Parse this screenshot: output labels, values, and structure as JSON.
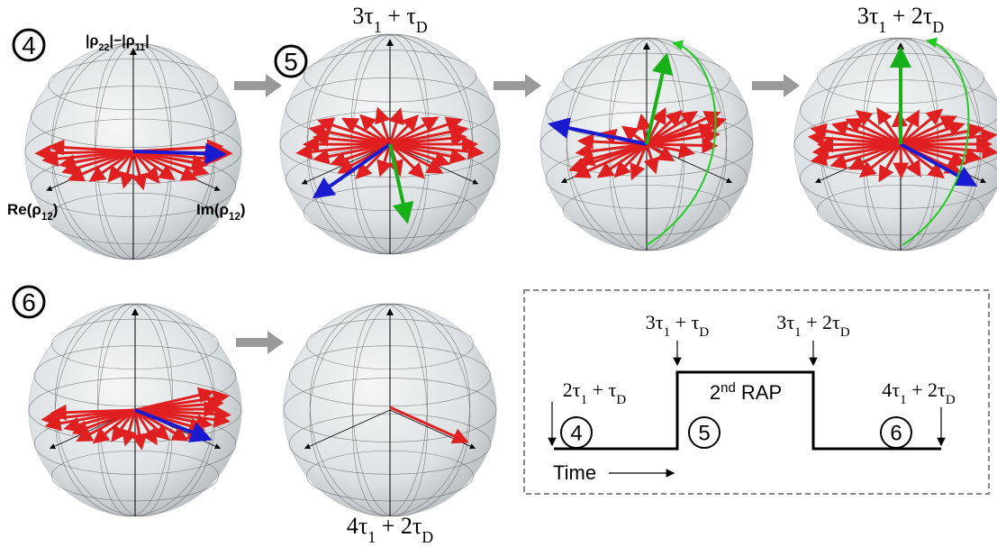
{
  "steps": [
    "4",
    "5",
    "6"
  ],
  "axis_labels": {
    "vertical": [
      "|ρ",
      "22",
      "|−|ρ",
      "11",
      "|"
    ],
    "left": [
      "Re(ρ",
      "12",
      ")"
    ],
    "right": [
      "Im(ρ",
      "12",
      ")"
    ]
  },
  "times": [
    [
      "3τ",
      "1",
      " + τ",
      "D"
    ],
    [
      "3τ",
      "1",
      " + 2τ",
      "D"
    ],
    [
      "4τ",
      "1",
      " + 2τ",
      "D"
    ]
  ],
  "timeline": {
    "top_labels": [
      [
        "3τ",
        "1",
        " + τ",
        "D"
      ],
      [
        "3τ",
        "1",
        " + 2τ",
        "D"
      ]
    ],
    "start_label": [
      "2τ",
      "1",
      " + τ",
      "D"
    ],
    "end_label": [
      "4τ",
      "1",
      " + 2τ",
      "D"
    ],
    "pulse_label": [
      "2",
      "nd",
      " RAP"
    ],
    "phases": [
      "4",
      "5",
      "6"
    ],
    "axis_label": "Time"
  }
}
